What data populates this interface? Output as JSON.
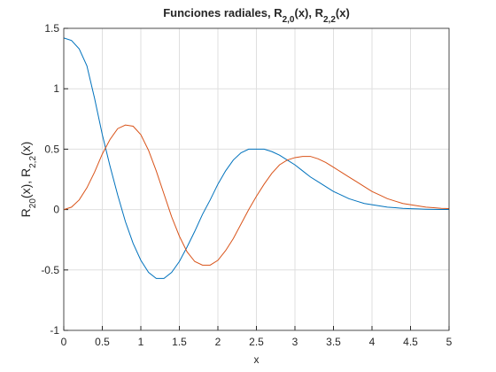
{
  "chart_data": {
    "type": "line",
    "title": [
      "Funciones radiales, R",
      "2,0",
      "(x), R",
      "2,2",
      "(x)"
    ],
    "xlabel": "x",
    "ylabel": [
      "R",
      "20",
      "(x), R",
      "2,2",
      "(x)"
    ],
    "x": [
      0,
      0.1,
      0.2,
      0.3,
      0.4,
      0.5,
      0.6,
      0.7,
      0.8,
      0.9,
      1,
      1.1,
      1.2,
      1.3,
      1.4,
      1.5,
      1.6,
      1.7,
      1.8,
      1.9,
      2,
      2.1,
      2.2,
      2.3,
      2.4,
      2.5,
      2.6,
      2.7,
      2.8,
      2.9,
      3,
      3.1,
      3.2,
      3.3,
      3.4,
      3.5,
      3.6,
      3.7,
      3.8,
      3.9,
      4,
      4.1,
      4.2,
      4.3,
      4.4,
      4.5,
      4.6,
      4.7,
      4.8,
      4.9,
      5
    ],
    "series": [
      {
        "color": "#0072bd",
        "values": [
          1.42,
          1.4,
          1.33,
          1.19,
          0.92,
          0.62,
          0.36,
          0.12,
          -0.1,
          -0.28,
          -0.42,
          -0.52,
          -0.57,
          -0.57,
          -0.52,
          -0.43,
          -0.31,
          -0.18,
          -0.04,
          0.08,
          0.21,
          0.32,
          0.41,
          0.47,
          0.5,
          0.5,
          0.5,
          0.48,
          0.45,
          0.41,
          0.37,
          0.32,
          0.27,
          0.23,
          0.19,
          0.15,
          0.12,
          0.09,
          0.07,
          0.05,
          0.04,
          0.03,
          0.02,
          0.015,
          0.01,
          0.007,
          0.005,
          0.003,
          0.002,
          0.001,
          0.001
        ]
      },
      {
        "color": "#d95319",
        "values": [
          0,
          0.02,
          0.08,
          0.18,
          0.31,
          0.46,
          0.58,
          0.67,
          0.7,
          0.69,
          0.62,
          0.49,
          0.32,
          0.13,
          -0.06,
          -0.22,
          -0.35,
          -0.43,
          -0.46,
          -0.46,
          -0.42,
          -0.34,
          -0.24,
          -0.12,
          0,
          0.11,
          0.21,
          0.3,
          0.37,
          0.41,
          0.43,
          0.44,
          0.44,
          0.42,
          0.39,
          0.35,
          0.31,
          0.27,
          0.23,
          0.19,
          0.15,
          0.12,
          0.09,
          0.07,
          0.05,
          0.04,
          0.03,
          0.02,
          0.015,
          0.01,
          0.008
        ]
      }
    ],
    "xlim": [
      0,
      5
    ],
    "xticks": [
      0,
      0.5,
      1,
      1.5,
      2,
      2.5,
      3,
      3.5,
      4,
      4.5,
      5
    ],
    "ylim": [
      -1,
      1.5
    ],
    "yticks": [
      -1,
      -0.5,
      0,
      0.5,
      1,
      1.5
    ],
    "grid": true
  }
}
